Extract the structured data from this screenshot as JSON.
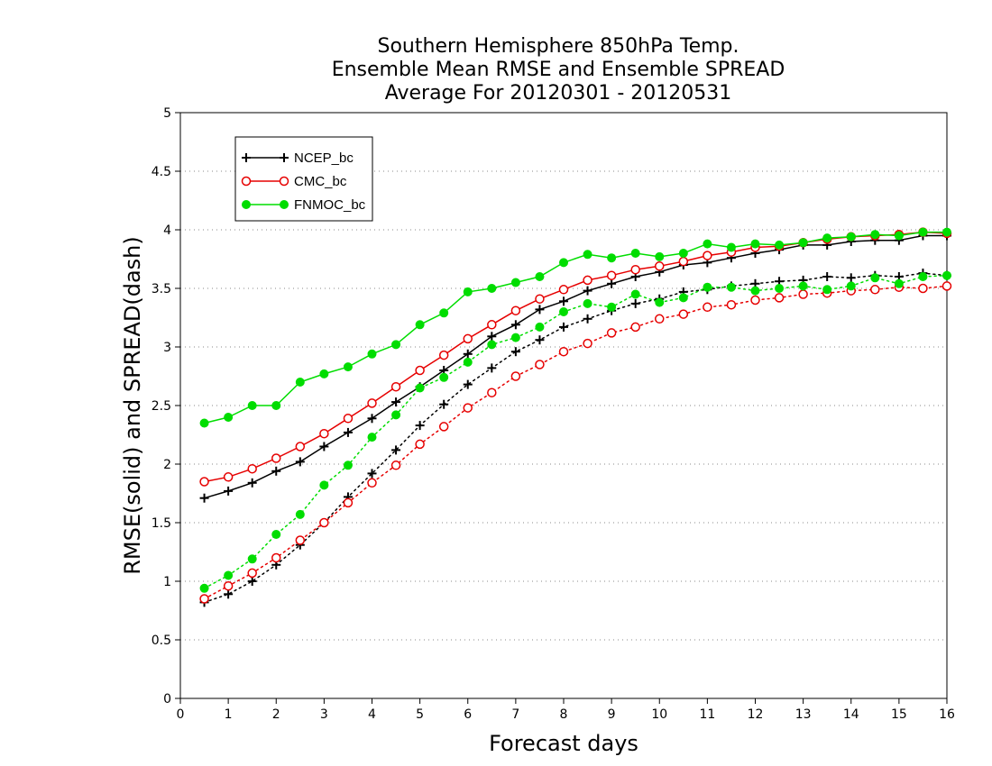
{
  "chart_data": {
    "type": "line",
    "title_lines": [
      "Southern Hemisphere 850hPa Temp.",
      "Ensemble Mean RMSE and Ensemble SPREAD",
      "Average For 20120301 - 20120531"
    ],
    "xlabel": "Forecast days",
    "ylabel": "RMSE(solid) and SPREAD(dash)",
    "xlim": [
      0,
      16
    ],
    "ylim": [
      0,
      5
    ],
    "xticks": [
      "0",
      "1",
      "2",
      "3",
      "4",
      "5",
      "6",
      "7",
      "8",
      "9",
      "10",
      "11",
      "12",
      "13",
      "14",
      "15",
      "16"
    ],
    "yticks": [
      "0",
      "0.5",
      "1",
      "1.5",
      "2",
      "2.5",
      "3",
      "3.5",
      "4",
      "4.5",
      "5"
    ],
    "grid": "horizontal dotted",
    "legend_position": "top-left",
    "x": [
      0.5,
      1,
      1.5,
      2,
      2.5,
      3,
      3.5,
      4,
      4.5,
      5,
      5.5,
      6,
      6.5,
      7,
      7.5,
      8,
      8.5,
      9,
      9.5,
      10,
      10.5,
      11,
      11.5,
      12,
      12.5,
      13,
      13.5,
      14,
      14.5,
      15,
      15.5,
      16
    ],
    "series": [
      {
        "name": "NCEP_bc",
        "color": "#000000",
        "marker": "plus",
        "rmse": [
          1.71,
          1.77,
          1.84,
          1.94,
          2.02,
          2.15,
          2.27,
          2.39,
          2.53,
          2.66,
          2.8,
          2.94,
          3.09,
          3.19,
          3.32,
          3.39,
          3.48,
          3.54,
          3.6,
          3.64,
          3.7,
          3.72,
          3.76,
          3.8,
          3.83,
          3.87,
          3.87,
          3.9,
          3.91,
          3.91,
          3.95,
          3.95
        ],
        "spread": [
          0.82,
          0.89,
          1.0,
          1.14,
          1.31,
          1.5,
          1.72,
          1.92,
          2.12,
          2.33,
          2.51,
          2.68,
          2.82,
          2.96,
          3.06,
          3.17,
          3.24,
          3.31,
          3.37,
          3.41,
          3.47,
          3.49,
          3.52,
          3.54,
          3.56,
          3.57,
          3.6,
          3.59,
          3.61,
          3.6,
          3.63,
          3.61
        ]
      },
      {
        "name": "CMC_bc",
        "color": "#e60000",
        "marker": "open-circle",
        "rmse": [
          1.85,
          1.89,
          1.96,
          2.05,
          2.15,
          2.26,
          2.39,
          2.52,
          2.66,
          2.8,
          2.93,
          3.07,
          3.19,
          3.31,
          3.41,
          3.49,
          3.57,
          3.61,
          3.66,
          3.69,
          3.73,
          3.78,
          3.81,
          3.85,
          3.86,
          3.89,
          3.92,
          3.94,
          3.95,
          3.96,
          3.98,
          3.97
        ],
        "spread": [
          0.85,
          0.96,
          1.07,
          1.2,
          1.35,
          1.5,
          1.67,
          1.84,
          1.99,
          2.17,
          2.32,
          2.48,
          2.61,
          2.75,
          2.85,
          2.96,
          3.03,
          3.12,
          3.17,
          3.24,
          3.28,
          3.34,
          3.36,
          3.4,
          3.42,
          3.45,
          3.46,
          3.48,
          3.49,
          3.51,
          3.5,
          3.52
        ]
      },
      {
        "name": "FNMOC_bc",
        "color": "#00dd00",
        "marker": "filled-circle",
        "rmse": [
          2.35,
          2.4,
          2.5,
          2.5,
          2.7,
          2.77,
          2.83,
          2.94,
          3.02,
          3.19,
          3.29,
          3.47,
          3.5,
          3.55,
          3.6,
          3.72,
          3.79,
          3.76,
          3.8,
          3.77,
          3.8,
          3.88,
          3.85,
          3.88,
          3.87,
          3.89,
          3.93,
          3.94,
          3.96,
          3.95,
          3.98,
          3.98
        ],
        "spread": [
          0.94,
          1.05,
          1.19,
          1.4,
          1.57,
          1.82,
          1.99,
          2.23,
          2.42,
          2.65,
          2.74,
          2.87,
          3.02,
          3.08,
          3.17,
          3.3,
          3.37,
          3.34,
          3.45,
          3.38,
          3.42,
          3.51,
          3.51,
          3.48,
          3.5,
          3.52,
          3.49,
          3.52,
          3.59,
          3.54,
          3.6,
          3.61
        ]
      }
    ]
  }
}
